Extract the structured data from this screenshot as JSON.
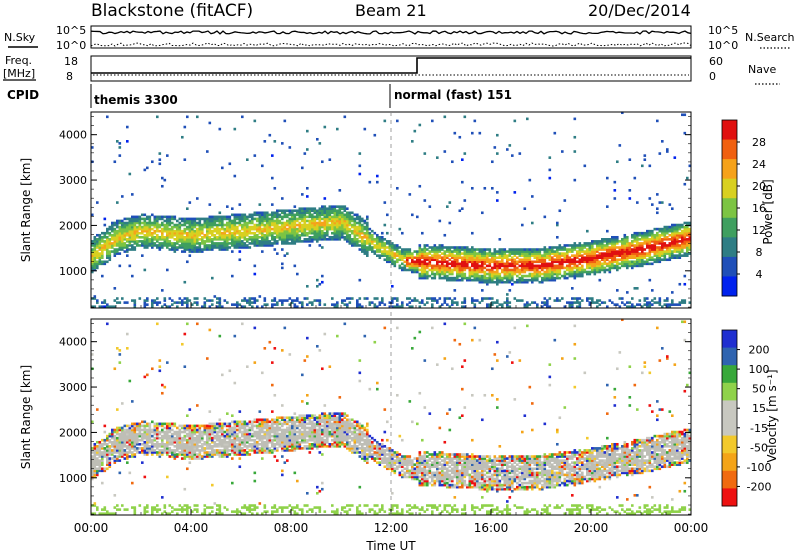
{
  "header": {
    "station": "Blackstone (fitACF)",
    "beam": "Beam 21",
    "date": "20/Dec/2014"
  },
  "top_panels": {
    "nsky_label": "N.Sky",
    "nsearch_label": "N.Search",
    "noise_ticks": [
      "10^5",
      "10^0"
    ],
    "freq_label_1": "Freq.",
    "freq_label_2": "[MHz]",
    "freq_ticks": [
      "18",
      "8"
    ],
    "nave_label": "Nave",
    "nave_ticks": [
      "60",
      "0"
    ],
    "cpid_label": "CPID",
    "cpid_modes": [
      {
        "name": "themis 3300",
        "start_hour": 0
      },
      {
        "name": "normal (fast) 151",
        "start_hour": 12
      }
    ]
  },
  "colors": {
    "power_scale": [
      "#0022ee",
      "#1f4fb8",
      "#2e7d84",
      "#3f9f5f",
      "#7cc443",
      "#d8d020",
      "#f6a21a",
      "#f06010",
      "#e01010"
    ],
    "velocity_scale": [
      "#ee1111",
      "#f06a10",
      "#f4a418",
      "#f2c92c",
      "#c8c8c0",
      "#c8c8c0",
      "#8fd24a",
      "#38a83a",
      "#2f64b0",
      "#1f2fd0"
    ],
    "ground_scatter": "#bebeb6"
  },
  "chart_data": [
    {
      "type": "heatmap",
      "panel": "power",
      "xlabel": "",
      "ylabel": "Slant Range [km]",
      "xlim_hours": [
        0,
        24
      ],
      "ylim": [
        180,
        4500
      ],
      "yticks": [
        "1000",
        "2000",
        "3000",
        "4000"
      ],
      "colorbar_label": "Power [dB]",
      "colorbar_ticks": [
        "4",
        "8",
        "12",
        "16",
        "20",
        "24",
        "28"
      ],
      "colorbar_range": [
        0,
        30
      ],
      "scatter_band_center_km": [
        [
          0,
          1300
        ],
        [
          1,
          1700
        ],
        [
          2,
          1850
        ],
        [
          4,
          1750
        ],
        [
          6,
          1850
        ],
        [
          8,
          1950
        ],
        [
          10,
          2050
        ],
        [
          11.5,
          1500
        ],
        [
          12.5,
          1200
        ],
        [
          14,
          1150
        ],
        [
          16,
          1080
        ],
        [
          18,
          1100
        ],
        [
          20,
          1250
        ],
        [
          22,
          1450
        ],
        [
          24,
          1700
        ]
      ],
      "peak_power_dB": 28
    },
    {
      "type": "heatmap",
      "panel": "velocity",
      "xlabel": "Time UT",
      "ylabel": "Slant Range [km]",
      "xlim_hours": [
        0,
        24
      ],
      "ylim": [
        180,
        4500
      ],
      "yticks": [
        "1000",
        "2000",
        "3000",
        "4000"
      ],
      "xticks": [
        "00:00",
        "04:00",
        "08:00",
        "12:00",
        "16:00",
        "20:00",
        "00:00"
      ],
      "colorbar_label": "Velocity [m s⁻¹]",
      "colorbar_ticks": [
        "200",
        "100",
        "50",
        "15",
        "-15",
        "-50",
        "-100",
        "-200"
      ],
      "colorbar_range": [
        -250,
        250
      ]
    }
  ]
}
